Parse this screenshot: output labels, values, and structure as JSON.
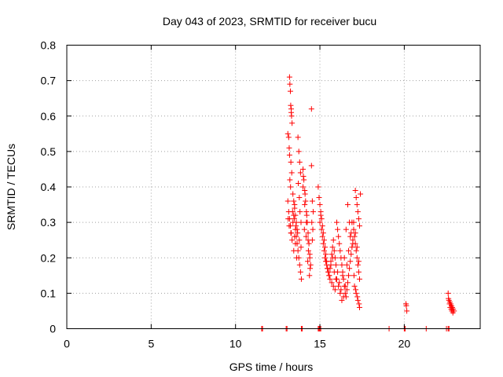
{
  "chart_data": {
    "type": "scatter",
    "title": "Day 043 of 2023, SRMTID for receiver bucu",
    "xlabel": "GPS time / hours",
    "ylabel": "SRMTID / TECUs",
    "xlim": [
      0,
      24.5
    ],
    "ylim": [
      0,
      0.8
    ],
    "xticks": [
      0,
      5,
      10,
      15,
      20
    ],
    "yticks": [
      0,
      0.1,
      0.2,
      0.3,
      0.4,
      0.5,
      0.6,
      0.7,
      0.8
    ],
    "ytick_labels": [
      "0",
      "0.1",
      "0.2",
      "0.3",
      "0.4",
      "0.5",
      "0.6",
      "0.7",
      "0.8"
    ],
    "grid": true,
    "marker": "+",
    "marker_color": "#ff0000",
    "series": [
      {
        "values_x": [
          11.55,
          11.6,
          13.0,
          13.05,
          13.9,
          13.95,
          14.9,
          14.95,
          15.0,
          15.05,
          19.1,
          20.0,
          20.05,
          21.3,
          22.5,
          22.6,
          22.65,
          13.2,
          13.22,
          13.25,
          13.27,
          13.3,
          13.3,
          13.32,
          13.35,
          13.1,
          13.15,
          13.18,
          13.2,
          13.28,
          13.33,
          13.22,
          13.26,
          13.4,
          13.45,
          13.5,
          13.55,
          13.6,
          13.65,
          13.5,
          13.55,
          13.45,
          13.62,
          13.7,
          13.75,
          13.8,
          13.85,
          13.72,
          13.78,
          13.82,
          13.88,
          13.1,
          13.15,
          13.2,
          13.25,
          13.3,
          13.35,
          13.4,
          13.45,
          13.5,
          13.55,
          13.6,
          13.65,
          13.7,
          13.75,
          13.8,
          13.85,
          13.9,
          13.12,
          13.18,
          13.28,
          13.38,
          13.48,
          13.58,
          13.68,
          13.78,
          13.88,
          14.0,
          14.05,
          14.1,
          14.15,
          14.2,
          14.25,
          14.3,
          14.35,
          14.4,
          14.45,
          14.0,
          14.1,
          14.2,
          14.3,
          14.4,
          14.02,
          14.12,
          14.22,
          14.32,
          14.42,
          14.08,
          14.18,
          14.28,
          14.38,
          14.5,
          14.5,
          14.55,
          14.6,
          14.52,
          14.58,
          14.9,
          14.95,
          14.55,
          15.0,
          15.05,
          15.1,
          15.15,
          15.2,
          15.25,
          15.3,
          15.35,
          15.4,
          15.45,
          15.5,
          15.55,
          15.6,
          15.65,
          15.7,
          15.75,
          15.8,
          15.85,
          15.9,
          15.95,
          15.0,
          15.1,
          15.2,
          15.3,
          15.4,
          15.5,
          15.6,
          15.7,
          15.8,
          15.9,
          15.05,
          15.15,
          15.25,
          15.35,
          15.45,
          15.55,
          15.65,
          15.75,
          15.85,
          15.95,
          16.0,
          16.05,
          16.1,
          16.15,
          16.2,
          16.25,
          16.3,
          16.35,
          16.4,
          16.45,
          16.5,
          16.55,
          16.6,
          16.65,
          16.7,
          16.75,
          16.8,
          16.85,
          16.9,
          16.95,
          16.0,
          16.1,
          16.2,
          16.3,
          16.4,
          16.5,
          16.6,
          16.7,
          16.8,
          16.9,
          16.05,
          16.15,
          16.25,
          16.35,
          16.45,
          16.55,
          16.65,
          16.75,
          16.85,
          16.95,
          17.0,
          17.05,
          17.1,
          17.15,
          17.2,
          17.25,
          17.3,
          17.35,
          17.0,
          17.1,
          17.2,
          17.3,
          17.05,
          17.15,
          17.25,
          17.35,
          17.02,
          17.12,
          17.22,
          17.32,
          17.1,
          17.15,
          17.2,
          17.25,
          17.3,
          17.35,
          17.4,
          20.1,
          20.15,
          20.12,
          22.6,
          22.65,
          22.7,
          22.75,
          22.8,
          22.85,
          22.9,
          22.95,
          22.62,
          22.68,
          22.72,
          22.78,
          22.82,
          22.88
        ],
        "values_y": [
          0,
          0,
          0,
          0,
          0,
          0,
          0,
          0,
          0,
          0,
          0,
          0,
          0,
          0,
          0,
          0,
          0,
          0.71,
          0.69,
          0.67,
          0.63,
          0.62,
          0.61,
          0.6,
          0.58,
          0.55,
          0.54,
          0.51,
          0.49,
          0.47,
          0.44,
          0.42,
          0.4,
          0.38,
          0.36,
          0.34,
          0.32,
          0.3,
          0.28,
          0.26,
          0.24,
          0.22,
          0.2,
          0.54,
          0.5,
          0.47,
          0.44,
          0.41,
          0.37,
          0.33,
          0.3,
          0.36,
          0.33,
          0.31,
          0.29,
          0.27,
          0.25,
          0.3,
          0.32,
          0.35,
          0.28,
          0.26,
          0.24,
          0.22,
          0.2,
          0.18,
          0.16,
          0.14,
          0.31,
          0.29,
          0.27,
          0.33,
          0.31,
          0.29,
          0.27,
          0.25,
          0.23,
          0.45,
          0.42,
          0.39,
          0.36,
          0.33,
          0.3,
          0.27,
          0.24,
          0.21,
          0.18,
          0.4,
          0.35,
          0.3,
          0.25,
          0.2,
          0.43,
          0.38,
          0.32,
          0.22,
          0.17,
          0.28,
          0.26,
          0.19,
          0.15,
          0.62,
          0.46,
          0.36,
          0.33,
          0.3,
          0.28,
          0.4,
          0.37,
          0.25,
          0.35,
          0.33,
          0.31,
          0.29,
          0.27,
          0.25,
          0.23,
          0.21,
          0.19,
          0.17,
          0.16,
          0.15,
          0.17,
          0.19,
          0.21,
          0.23,
          0.25,
          0.22,
          0.2,
          0.18,
          0.3,
          0.28,
          0.24,
          0.2,
          0.18,
          0.16,
          0.14,
          0.13,
          0.12,
          0.11,
          0.32,
          0.26,
          0.22,
          0.19,
          0.17,
          0.15,
          0.18,
          0.2,
          0.16,
          0.14,
          0.3,
          0.28,
          0.26,
          0.24,
          0.22,
          0.2,
          0.18,
          0.16,
          0.14,
          0.12,
          0.1,
          0.09,
          0.11,
          0.13,
          0.15,
          0.17,
          0.19,
          0.21,
          0.23,
          0.25,
          0.14,
          0.12,
          0.1,
          0.08,
          0.09,
          0.12,
          0.18,
          0.22,
          0.26,
          0.3,
          0.16,
          0.13,
          0.11,
          0.15,
          0.2,
          0.28,
          0.35,
          0.3,
          0.27,
          0.24,
          0.28,
          0.26,
          0.24,
          0.22,
          0.2,
          0.18,
          0.16,
          0.14,
          0.3,
          0.27,
          0.23,
          0.19,
          0.12,
          0.1,
          0.08,
          0.06,
          0.15,
          0.11,
          0.09,
          0.07,
          0.39,
          0.37,
          0.35,
          0.33,
          0.31,
          0.29,
          0.38,
          0.07,
          0.05,
          0.065,
          0.1,
          0.08,
          0.075,
          0.07,
          0.065,
          0.06,
          0.055,
          0.05,
          0.085,
          0.07,
          0.06,
          0.055,
          0.05,
          0.045
        ]
      }
    ]
  }
}
